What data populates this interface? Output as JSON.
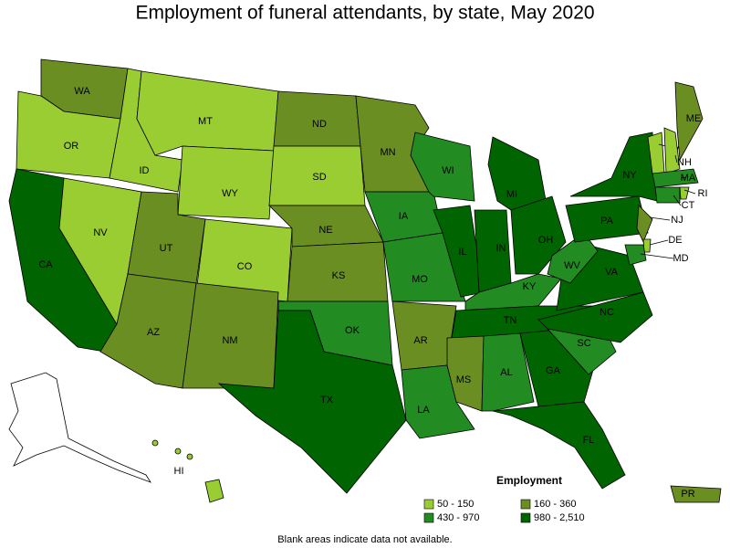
{
  "title": "Employment of funeral attendants, by state, May 2020",
  "legend": {
    "title": "Employment",
    "items": [
      {
        "label": "50 - 150",
        "color": "#9acd32"
      },
      {
        "label": "160 - 360",
        "color": "#6b8e23"
      },
      {
        "label": "430 - 970",
        "color": "#228b22"
      },
      {
        "label": "980 - 2,510",
        "color": "#006400"
      }
    ]
  },
  "footnote": "Blank areas indicate data not available.",
  "states": [
    {
      "label": "WA",
      "color": "#6b8e23"
    },
    {
      "label": "OR",
      "color": "#9acd32"
    },
    {
      "label": "CA",
      "color": "#006400"
    },
    {
      "label": "NV",
      "color": "#9acd32"
    },
    {
      "label": "ID",
      "color": "#9acd32"
    },
    {
      "label": "MT",
      "color": "#9acd32"
    },
    {
      "label": "WY",
      "color": "#9acd32"
    },
    {
      "label": "UT",
      "color": "#6b8e23"
    },
    {
      "label": "CO",
      "color": "#9acd32"
    },
    {
      "label": "AZ",
      "color": "#6b8e23"
    },
    {
      "label": "NM",
      "color": "#6b8e23"
    },
    {
      "label": "ND",
      "color": "#6b8e23"
    },
    {
      "label": "SD",
      "color": "#9acd32"
    },
    {
      "label": "NE",
      "color": "#6b8e23"
    },
    {
      "label": "KS",
      "color": "#6b8e23"
    },
    {
      "label": "OK",
      "color": "#228b22"
    },
    {
      "label": "TX",
      "color": "#006400"
    },
    {
      "label": "MN",
      "color": "#6b8e23"
    },
    {
      "label": "IA",
      "color": "#228b22"
    },
    {
      "label": "MO",
      "color": "#228b22"
    },
    {
      "label": "AR",
      "color": "#6b8e23"
    },
    {
      "label": "LA",
      "color": "#228b22"
    },
    {
      "label": "WI",
      "color": "#228b22"
    },
    {
      "label": "IL",
      "color": "#006400"
    },
    {
      "label": "IN",
      "color": "#006400"
    },
    {
      "label": "MI",
      "color": "#006400"
    },
    {
      "label": "OH",
      "color": "#006400"
    },
    {
      "label": "KY",
      "color": "#228b22"
    },
    {
      "label": "TN",
      "color": "#006400"
    },
    {
      "label": "MS",
      "color": "#6b8e23"
    },
    {
      "label": "AL",
      "color": "#228b22"
    },
    {
      "label": "GA",
      "color": "#006400"
    },
    {
      "label": "FL",
      "color": "#006400"
    },
    {
      "label": "SC",
      "color": "#228b22"
    },
    {
      "label": "NC",
      "color": "#006400"
    },
    {
      "label": "VA",
      "color": "#006400"
    },
    {
      "label": "WV",
      "color": "#228b22"
    },
    {
      "label": "PA",
      "color": "#006400"
    },
    {
      "label": "NY",
      "color": "#006400"
    },
    {
      "label": "NJ",
      "color": "#6b8e23"
    },
    {
      "label": "DE",
      "color": "#9acd32"
    },
    {
      "label": "MD",
      "color": "#228b22"
    },
    {
      "label": "VT",
      "color": "#9acd32"
    },
    {
      "label": "NH",
      "color": "#9acd32"
    },
    {
      "label": "ME",
      "color": "#6b8e23"
    },
    {
      "label": "MA",
      "color": "#228b22"
    },
    {
      "label": "CT",
      "color": "#228b22"
    },
    {
      "label": "RI",
      "color": "#9acd32"
    },
    {
      "label": "HI",
      "color": "#9acd32"
    },
    {
      "label": "PR",
      "color": "#6b8e23"
    }
  ]
}
